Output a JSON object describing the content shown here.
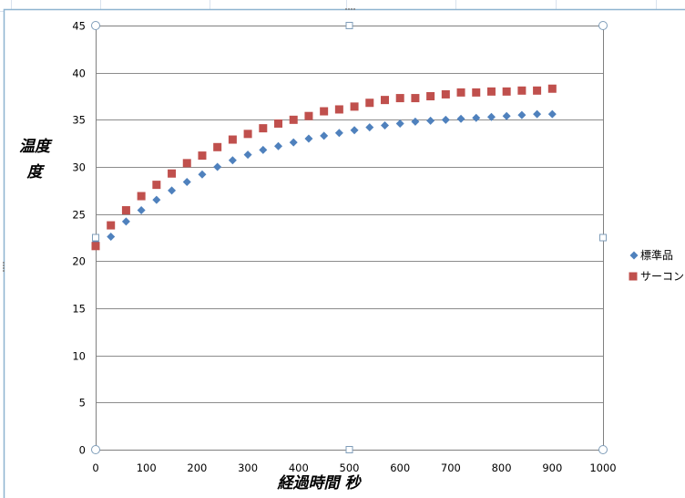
{
  "chart_data": {
    "type": "scatter",
    "xlabel": "経過時間 秒",
    "ylabel_lines": [
      "温度",
      "度"
    ],
    "xlim": [
      0,
      1000
    ],
    "ylim": [
      0,
      45
    ],
    "xticks": [
      0,
      100,
      200,
      300,
      400,
      500,
      600,
      700,
      800,
      900,
      1000
    ],
    "yticks": [
      0,
      5,
      10,
      15,
      20,
      25,
      30,
      35,
      40,
      45
    ],
    "grid": "horizontal",
    "legend_position": "right",
    "series": [
      {
        "name": "標準品",
        "marker": "diamond",
        "color": "#4f81bd",
        "x": [
          0,
          30,
          60,
          90,
          120,
          150,
          180,
          210,
          240,
          270,
          300,
          330,
          360,
          390,
          420,
          450,
          480,
          510,
          540,
          570,
          600,
          630,
          660,
          690,
          720,
          750,
          780,
          810,
          840,
          870,
          900
        ],
        "y": [
          22.0,
          22.6,
          24.2,
          25.4,
          26.5,
          27.5,
          28.4,
          29.2,
          30.0,
          30.7,
          31.3,
          31.8,
          32.2,
          32.6,
          33.0,
          33.3,
          33.6,
          33.9,
          34.2,
          34.4,
          34.6,
          34.8,
          34.9,
          35.0,
          35.1,
          35.2,
          35.3,
          35.4,
          35.5,
          35.6,
          35.6
        ]
      },
      {
        "name": "サーコン",
        "marker": "square",
        "color": "#c0504d",
        "x": [
          0,
          30,
          60,
          90,
          120,
          150,
          180,
          210,
          240,
          270,
          300,
          330,
          360,
          390,
          420,
          450,
          480,
          510,
          540,
          570,
          600,
          630,
          660,
          690,
          720,
          750,
          780,
          810,
          840,
          870,
          900
        ],
        "y": [
          21.6,
          23.8,
          25.4,
          26.9,
          28.1,
          29.3,
          30.4,
          31.2,
          32.1,
          32.9,
          33.5,
          34.1,
          34.6,
          35.0,
          35.4,
          35.9,
          36.1,
          36.4,
          36.8,
          37.1,
          37.3,
          37.3,
          37.5,
          37.7,
          37.9,
          37.9,
          38.0,
          38.0,
          38.1,
          38.1,
          38.3
        ]
      }
    ]
  }
}
